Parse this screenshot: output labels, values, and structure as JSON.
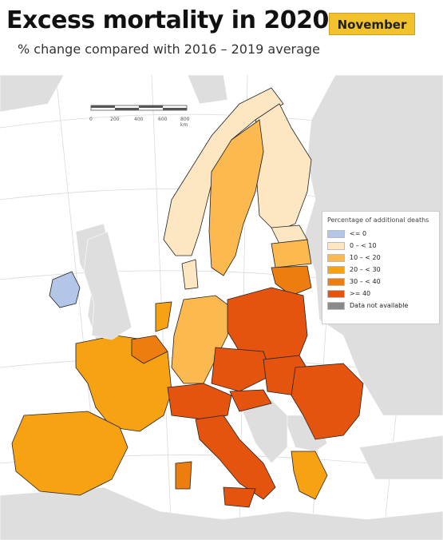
{
  "title": "Excess mortality in 2020",
  "month_badge": "November",
  "subtitle": "% change compared with 2016 – 2019 average",
  "legend": {
    "title": "Percentage of additional deaths",
    "items": [
      {
        "label": "<= 0",
        "color": "#b3c6e8"
      },
      {
        "label": "0 – < 10",
        "color": "#fde6c2"
      },
      {
        "label": "10 – < 20",
        "color": "#fbb94f"
      },
      {
        "label": "20 – < 30",
        "color": "#f6a213"
      },
      {
        "label": "30 – < 40",
        "color": "#ee7d0f"
      },
      {
        "label": ">= 40",
        "color": "#e4540e"
      },
      {
        "label": "Data not available",
        "color": "#8a8a8a"
      }
    ]
  },
  "scale": {
    "labels": [
      "0",
      "200",
      "400",
      "600",
      "800 km"
    ]
  },
  "colors": {
    "sea": "#ffffff",
    "non_eu": "#dedede",
    "border": "#222222"
  }
}
